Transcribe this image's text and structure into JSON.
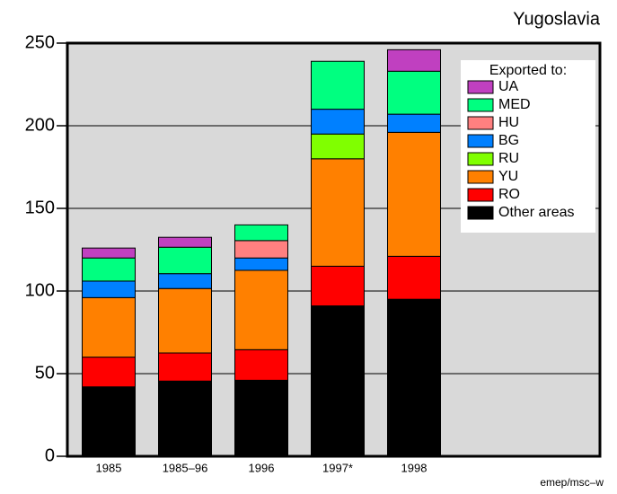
{
  "chart_data": {
    "type": "stacked_bar",
    "title": "Yugoslavia",
    "annotations": [
      "emep/msc–w"
    ],
    "legend_title": "Exported to:",
    "categories": [
      "1985",
      "1985–96",
      "1996",
      "1997*",
      "1998"
    ],
    "series": [
      {
        "name": "Other areas",
        "color": "#000000",
        "values": [
          42,
          45.5,
          46,
          91,
          95
        ]
      },
      {
        "name": "RO",
        "color": "#ff0000",
        "values": [
          18,
          17,
          18.5,
          24,
          26
        ]
      },
      {
        "name": "YU",
        "color": "#ff8000",
        "values": [
          36,
          39,
          48,
          65,
          75
        ]
      },
      {
        "name": "RU",
        "color": "#80ff00",
        "values": [
          0,
          0,
          0,
          15,
          0
        ]
      },
      {
        "name": "BG",
        "color": "#0080ff",
        "values": [
          10,
          9,
          7.5,
          15,
          11
        ]
      },
      {
        "name": "HU",
        "color": "#ff8080",
        "values": [
          0,
          0,
          10.5,
          0,
          0
        ]
      },
      {
        "name": "MED",
        "color": "#00ff80",
        "values": [
          14,
          16,
          9.5,
          29,
          26
        ]
      },
      {
        "name": "UA",
        "color": "#c040c0",
        "values": [
          6,
          6,
          0,
          0,
          13
        ]
      }
    ],
    "ylim": [
      0,
      250
    ],
    "yticks": [
      0,
      50,
      100,
      150,
      200,
      250
    ],
    "grid": true,
    "legend": "upper right"
  }
}
